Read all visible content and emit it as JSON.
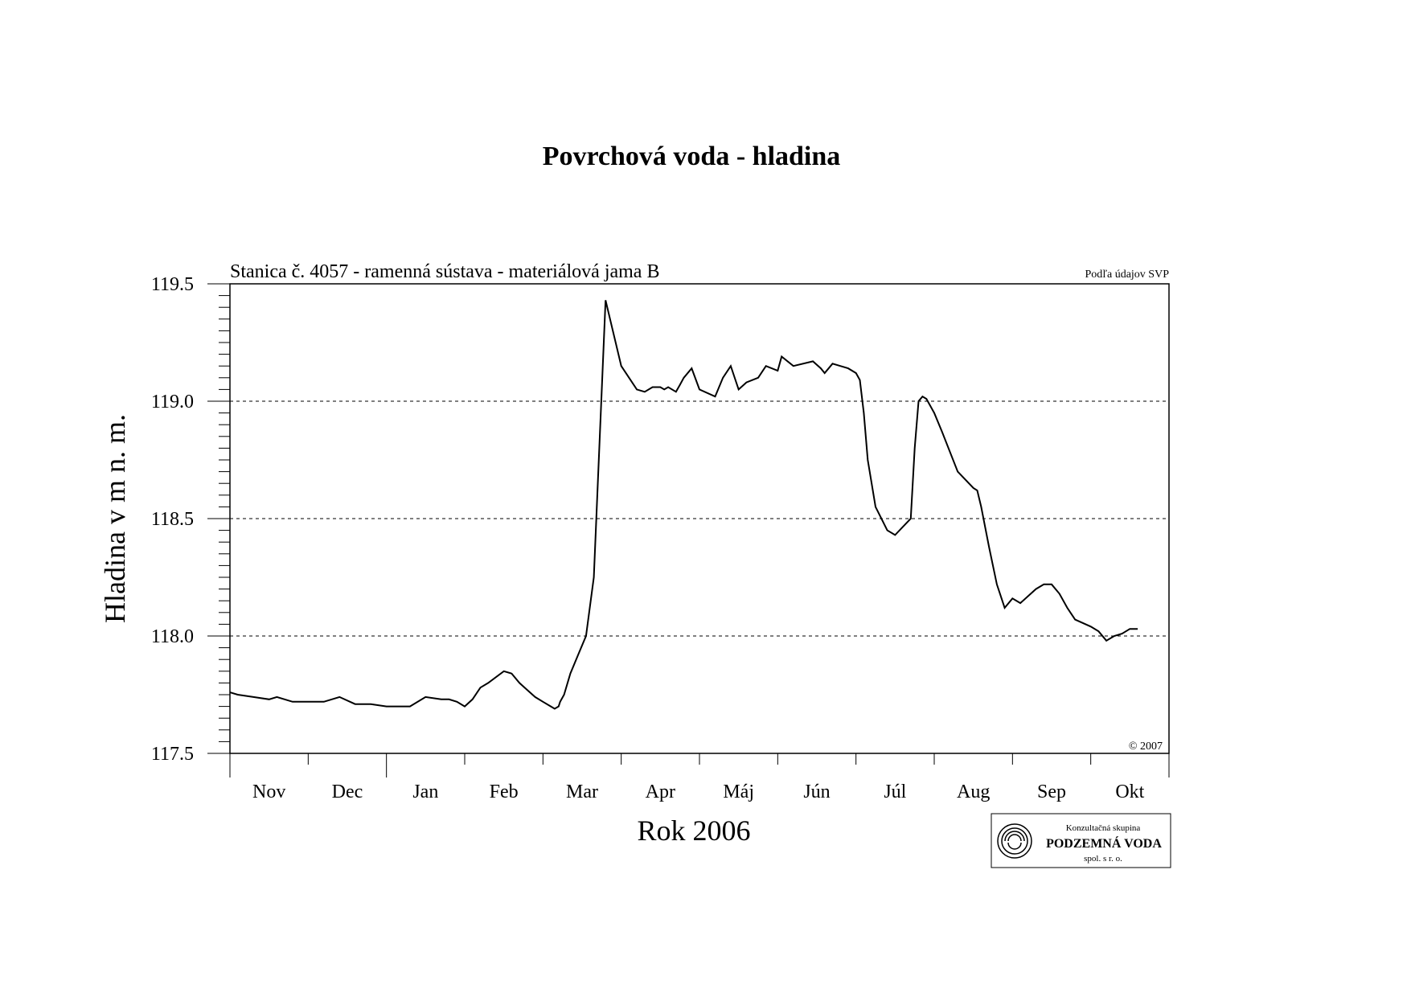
{
  "chart_data": {
    "type": "line",
    "title": "Povrchová voda - hladina",
    "subtitle": "Stanica č. 4057 - ramenná sústava - materiálová jama B",
    "source": "Podľa údajov SVP",
    "copyright": "© 2007",
    "xlabel": "Rok 2006",
    "ylabel": "Hladina v m n. m.",
    "ylim": [
      117.5,
      119.5
    ],
    "yticks": [
      "117.5",
      "118.0",
      "118.5",
      "119.0",
      "119.5"
    ],
    "grid": true,
    "categories": [
      "Nov",
      "Dec",
      "Jan",
      "Feb",
      "Mar",
      "Apr",
      "Máj",
      "Jún",
      "Júl",
      "Aug",
      "Sep",
      "Okt"
    ],
    "series": [
      {
        "x": [
          0,
          0.1,
          0.3,
          0.5,
          0.6,
          0.8,
          1.0,
          1.2,
          1.4,
          1.6,
          1.8,
          2.0,
          2.3,
          2.5,
          2.7,
          2.8,
          2.9,
          3.0,
          3.1,
          3.2,
          3.3,
          3.5,
          3.6,
          3.7,
          3.8,
          3.9,
          4.0,
          4.1,
          4.15,
          4.2,
          4.22,
          4.27,
          4.35,
          4.45,
          4.55,
          4.65,
          4.8,
          5.0,
          5.2,
          5.3,
          5.4,
          5.5,
          5.55,
          5.6,
          5.7,
          5.75,
          5.8,
          5.9,
          6.0,
          6.2,
          6.3,
          6.4,
          6.5,
          6.6,
          6.75,
          6.85,
          7.0,
          7.05,
          7.2,
          7.45,
          7.55,
          7.6,
          7.7,
          7.8,
          7.9,
          8.0,
          8.05,
          8.1,
          8.15,
          8.25,
          8.4,
          8.5,
          8.7,
          8.75,
          8.8,
          8.85,
          8.9,
          9.0,
          9.1,
          9.3,
          9.5,
          9.55,
          9.6,
          9.7,
          9.75,
          9.8,
          9.9,
          10.0,
          10.1,
          10.3,
          10.4,
          10.5,
          10.6,
          10.7,
          10.8,
          11.0,
          11.1,
          11.2,
          11.3,
          11.4,
          11.5,
          11.6
        ],
        "y": [
          117.76,
          117.75,
          117.74,
          117.73,
          117.74,
          117.72,
          117.72,
          117.72,
          117.74,
          117.71,
          117.71,
          117.7,
          117.7,
          117.74,
          117.73,
          117.73,
          117.72,
          117.7,
          117.73,
          117.78,
          117.8,
          117.85,
          117.84,
          117.8,
          117.77,
          117.74,
          117.72,
          117.7,
          117.69,
          117.7,
          117.72,
          117.75,
          117.84,
          117.92,
          118.0,
          118.25,
          119.43,
          119.15,
          119.05,
          119.04,
          119.06,
          119.06,
          119.05,
          119.06,
          119.04,
          119.07,
          119.1,
          119.14,
          119.05,
          119.02,
          119.1,
          119.15,
          119.05,
          119.08,
          119.1,
          119.15,
          119.13,
          119.19,
          119.15,
          119.17,
          119.14,
          119.12,
          119.16,
          119.15,
          119.14,
          119.12,
          119.09,
          118.95,
          118.75,
          118.55,
          118.45,
          118.43,
          118.5,
          118.8,
          119.0,
          119.02,
          119.01,
          118.95,
          118.87,
          118.7,
          118.63,
          118.62,
          118.55,
          118.38,
          118.3,
          118.22,
          118.12,
          118.16,
          118.14,
          118.2,
          118.22,
          118.22,
          118.18,
          118.12,
          118.07,
          118.04,
          118.02,
          117.98,
          118.0,
          118.01,
          118.03,
          118.03
        ]
      }
    ]
  },
  "logo": {
    "line1": "Konzultačná skupina",
    "line2": "PODZEMNÁ VODA",
    "line3": "spol. s r. o."
  }
}
